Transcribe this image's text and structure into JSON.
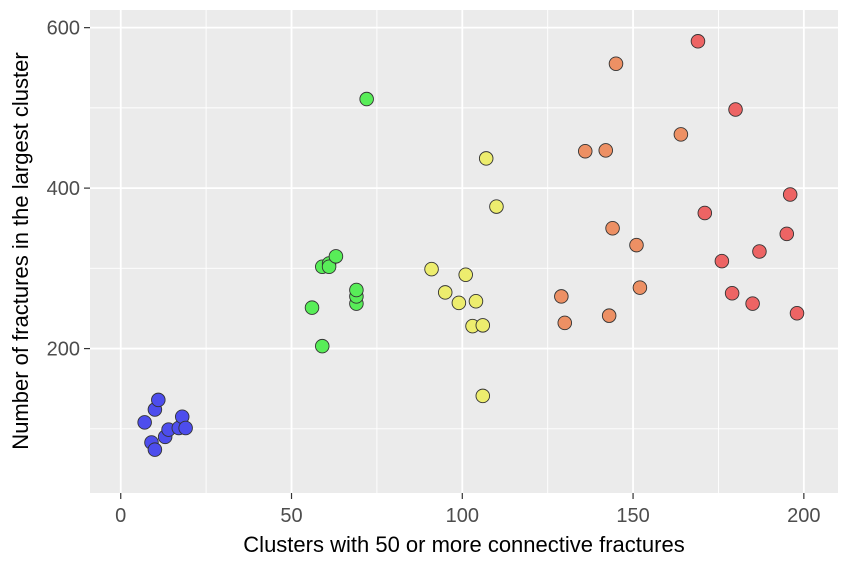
{
  "chart_data": {
    "type": "scatter",
    "title": "",
    "xlabel": "Clusters with 50 or more connective fractures",
    "ylabel": "Number of fractures in the largest cluster",
    "xlim": [
      -9,
      210
    ],
    "ylim": [
      20,
      622
    ],
    "x_ticks": [
      0,
      50,
      100,
      150,
      200
    ],
    "y_ticks": [
      200,
      400,
      600
    ],
    "grid": true,
    "legend": "none",
    "panel_background": "#ebebeb",
    "grid_color": "#ffffff",
    "series": [
      {
        "color": "#4d4ded",
        "points": [
          [
            7,
            108
          ],
          [
            9,
            83
          ],
          [
            10,
            74
          ],
          [
            10,
            124
          ],
          [
            11,
            136
          ],
          [
            13,
            90
          ],
          [
            14,
            99
          ],
          [
            17,
            101
          ],
          [
            18,
            115
          ],
          [
            19,
            101
          ]
        ]
      },
      {
        "color": "#58ed58",
        "points": [
          [
            56,
            251
          ],
          [
            59,
            203
          ],
          [
            59,
            302
          ],
          [
            61,
            306
          ],
          [
            61,
            302
          ],
          [
            63,
            315
          ],
          [
            69,
            256
          ],
          [
            69,
            265
          ],
          [
            69,
            273
          ],
          [
            72,
            511
          ]
        ]
      },
      {
        "color": "#eded6e",
        "points": [
          [
            91,
            299
          ],
          [
            95,
            270
          ],
          [
            99,
            257
          ],
          [
            101,
            292
          ],
          [
            103,
            228
          ],
          [
            104,
            259
          ],
          [
            106,
            229
          ],
          [
            106,
            141
          ],
          [
            107,
            437
          ],
          [
            110,
            377
          ]
        ]
      },
      {
        "color": "#ed9064",
        "points": [
          [
            129,
            265
          ],
          [
            130,
            232
          ],
          [
            136,
            446
          ],
          [
            142,
            447
          ],
          [
            143,
            241
          ],
          [
            144,
            350
          ],
          [
            145,
            555
          ],
          [
            151,
            329
          ],
          [
            152,
            276
          ],
          [
            164,
            467
          ]
        ]
      },
      {
        "color": "#ed6464",
        "points": [
          [
            169,
            583
          ],
          [
            171,
            369
          ],
          [
            176,
            309
          ],
          [
            179,
            269
          ],
          [
            180,
            498
          ],
          [
            185,
            256
          ],
          [
            187,
            321
          ],
          [
            195,
            343
          ],
          [
            196,
            392
          ],
          [
            198,
            244
          ]
        ]
      }
    ]
  }
}
